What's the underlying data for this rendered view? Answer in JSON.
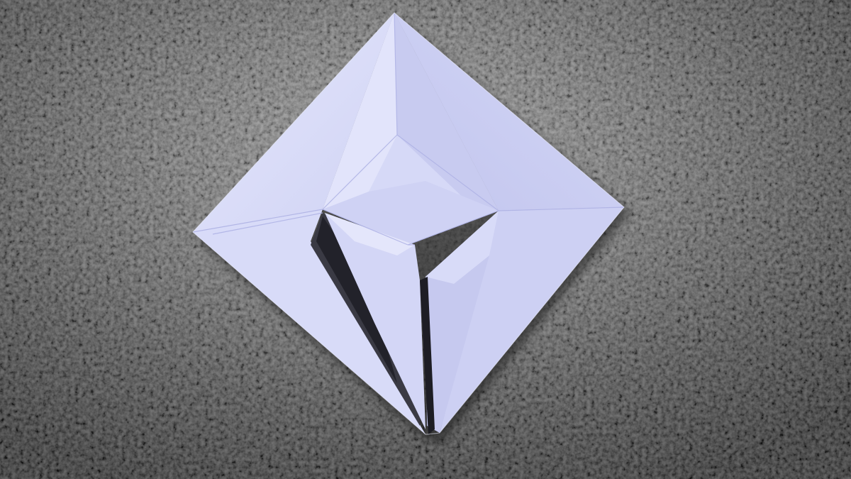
{
  "image": {
    "subject": "origami-paper-fold",
    "colors": {
      "surface_light": "#8e8e8e",
      "surface_mid": "#4a4a4a",
      "surface_dark": "#1c1c1c",
      "paper_light": "#dfe1fb",
      "paper_mid": "#c9ccf1",
      "paper_shadow": "#a6aae0",
      "cast_shadow": "#151515"
    }
  }
}
